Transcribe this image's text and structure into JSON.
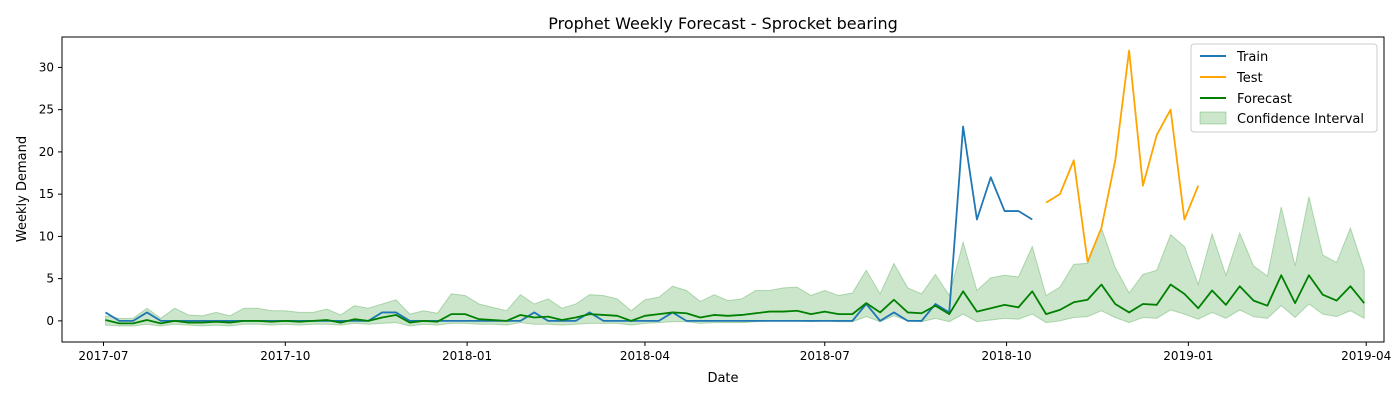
{
  "chart_data": {
    "type": "line",
    "title": "Prophet Weekly Forecast - Sprocket bearing",
    "xlabel": "Date",
    "ylabel": "Weekly Demand",
    "xlim": [
      "2017-06-10",
      "2019-04-10"
    ],
    "ylim": [
      -2.5,
      33.6
    ],
    "x_tick_labels": [
      "2017-07",
      "2017-10",
      "2018-01",
      "2018-04",
      "2018-07",
      "2018-10",
      "2019-01",
      "2019-04"
    ],
    "x_ticks": [
      "2017-07-01",
      "2017-10-01",
      "2018-01-01",
      "2018-04-01",
      "2018-07-01",
      "2018-10-01",
      "2019-01-01",
      "2019-04-01"
    ],
    "y_ticks": [
      0,
      5,
      10,
      15,
      20,
      25,
      30
    ],
    "grid": false,
    "legend_position": "upper right",
    "series": [
      {
        "name": "Train",
        "color": "#1f77b4",
        "x": [
          "2017-07-02",
          "2017-07-09",
          "2017-07-16",
          "2017-07-23",
          "2017-07-30",
          "2017-08-06",
          "2017-08-13",
          "2017-08-20",
          "2017-08-27",
          "2017-09-03",
          "2017-09-10",
          "2017-09-17",
          "2017-09-24",
          "2017-10-01",
          "2017-10-08",
          "2017-10-15",
          "2017-10-22",
          "2017-10-29",
          "2017-11-05",
          "2017-11-12",
          "2017-11-19",
          "2017-11-26",
          "2017-12-03",
          "2017-12-10",
          "2017-12-17",
          "2017-12-24",
          "2017-12-31",
          "2018-01-07",
          "2018-01-14",
          "2018-01-21",
          "2018-01-28",
          "2018-02-04",
          "2018-02-11",
          "2018-02-18",
          "2018-02-25",
          "2018-03-04",
          "2018-03-11",
          "2018-03-18",
          "2018-03-25",
          "2018-04-01",
          "2018-04-08",
          "2018-04-15",
          "2018-04-22",
          "2018-04-29",
          "2018-05-06",
          "2018-05-13",
          "2018-05-20",
          "2018-05-27",
          "2018-06-03",
          "2018-06-10",
          "2018-06-17",
          "2018-06-24",
          "2018-07-01",
          "2018-07-08",
          "2018-07-15",
          "2018-07-22",
          "2018-07-29",
          "2018-08-05",
          "2018-08-12",
          "2018-08-19",
          "2018-08-26",
          "2018-09-02",
          "2018-09-09",
          "2018-09-16",
          "2018-09-23",
          "2018-09-30",
          "2018-10-07",
          "2018-10-14"
        ],
        "values": [
          1,
          0,
          0,
          1,
          0,
          0,
          0,
          0,
          0,
          0,
          0,
          0,
          0,
          0,
          0,
          0,
          0,
          0,
          0,
          0,
          1,
          1,
          0,
          0,
          0,
          0,
          0,
          0,
          0,
          0,
          0,
          1,
          0,
          0,
          0,
          1,
          0,
          0,
          0,
          0,
          0,
          1,
          0,
          0,
          0,
          0,
          0,
          0,
          0,
          0,
          0,
          0,
          0,
          0,
          0,
          2,
          0,
          1,
          0,
          0,
          2,
          1,
          23,
          12,
          17,
          13,
          13,
          12
        ]
      },
      {
        "name": "Test",
        "color": "#ffa500",
        "x": [
          "2018-10-21",
          "2018-10-28",
          "2018-11-04",
          "2018-11-11",
          "2018-11-18",
          "2018-11-25",
          "2018-12-02",
          "2018-12-09",
          "2018-12-16",
          "2018-12-23",
          "2018-12-30",
          "2019-01-06"
        ],
        "values": [
          14,
          15,
          19,
          7,
          11,
          19,
          32,
          16,
          22,
          25,
          12,
          16
        ]
      },
      {
        "name": "Forecast",
        "color": "#008000",
        "x": [
          "2017-07-02",
          "2017-07-09",
          "2017-07-16",
          "2017-07-23",
          "2017-07-30",
          "2017-08-06",
          "2017-08-13",
          "2017-08-20",
          "2017-08-27",
          "2017-09-03",
          "2017-09-10",
          "2017-09-17",
          "2017-09-24",
          "2017-10-01",
          "2017-10-08",
          "2017-10-15",
          "2017-10-22",
          "2017-10-29",
          "2017-11-05",
          "2017-11-12",
          "2017-11-19",
          "2017-11-26",
          "2017-12-03",
          "2017-12-10",
          "2017-12-17",
          "2017-12-24",
          "2017-12-31",
          "2018-01-07",
          "2018-01-14",
          "2018-01-21",
          "2018-01-28",
          "2018-02-04",
          "2018-02-11",
          "2018-02-18",
          "2018-02-25",
          "2018-03-04",
          "2018-03-11",
          "2018-03-18",
          "2018-03-25",
          "2018-04-01",
          "2018-04-08",
          "2018-04-15",
          "2018-04-22",
          "2018-04-29",
          "2018-05-06",
          "2018-05-13",
          "2018-05-20",
          "2018-05-27",
          "2018-06-03",
          "2018-06-10",
          "2018-06-17",
          "2018-06-24",
          "2018-07-01",
          "2018-07-08",
          "2018-07-15",
          "2018-07-22",
          "2018-07-29",
          "2018-08-05",
          "2018-08-12",
          "2018-08-19",
          "2018-08-26",
          "2018-09-02",
          "2018-09-09",
          "2018-09-16",
          "2018-09-23",
          "2018-09-30",
          "2018-10-07",
          "2018-10-14",
          "2018-10-21",
          "2018-10-28",
          "2018-11-04",
          "2018-11-11",
          "2018-11-18",
          "2018-11-25",
          "2018-12-02",
          "2018-12-09",
          "2018-12-16",
          "2018-12-23",
          "2018-12-30",
          "2019-01-06",
          "2019-01-13",
          "2019-01-20",
          "2019-01-27",
          "2019-02-03",
          "2019-02-10",
          "2019-02-17",
          "2019-02-24",
          "2019-03-03",
          "2019-03-10",
          "2019-03-17",
          "2019-03-24",
          "2019-03-31"
        ],
        "values": [
          0.1,
          -0.3,
          -0.3,
          0.1,
          -0.3,
          0.0,
          -0.2,
          -0.2,
          -0.1,
          -0.2,
          0.0,
          0.0,
          -0.1,
          0.0,
          -0.1,
          0.0,
          0.1,
          -0.2,
          0.2,
          0.0,
          0.4,
          0.7,
          -0.2,
          0.0,
          -0.1,
          0.8,
          0.8,
          0.2,
          0.1,
          0.0,
          0.7,
          0.4,
          0.5,
          0.1,
          0.4,
          0.8,
          0.7,
          0.6,
          0.0,
          0.6,
          0.8,
          1.0,
          0.9,
          0.4,
          0.7,
          0.6,
          0.7,
          0.9,
          1.1,
          1.1,
          1.2,
          0.8,
          1.1,
          0.8,
          0.8,
          2.1,
          1.0,
          2.5,
          1.0,
          0.9,
          1.8,
          0.8,
          3.5,
          1.1,
          1.5,
          1.9,
          1.6,
          3.5,
          0.8,
          1.3,
          2.2,
          2.5,
          4.3,
          2.0,
          1.0,
          2.0,
          1.9,
          4.3,
          3.2,
          1.5,
          3.6,
          1.9,
          4.1,
          2.4,
          1.8,
          5.4,
          2.1,
          5.4,
          3.1,
          2.4,
          4.1,
          2.1
        ]
      }
    ],
    "confidence_interval": {
      "name": "Confidence Interval",
      "color": "#008000",
      "opacity": 0.2,
      "upper": [
        0.6,
        0.3,
        0.3,
        1.5,
        0.3,
        1.5,
        0.7,
        0.6,
        1.0,
        0.6,
        1.5,
        1.5,
        1.2,
        1.2,
        1.0,
        1.0,
        1.4,
        0.7,
        1.8,
        1.5,
        2.0,
        2.5,
        0.8,
        1.2,
        0.9,
        3.2,
        3.0,
        2.0,
        1.6,
        1.2,
        3.1,
        2.0,
        2.6,
        1.5,
        2.0,
        3.1,
        3.0,
        2.6,
        1.2,
        2.5,
        2.8,
        4.1,
        3.6,
        2.3,
        3.1,
        2.4,
        2.6,
        3.6,
        3.6,
        3.9,
        4.0,
        3.0,
        3.6,
        3.0,
        3.3,
        6.0,
        3.2,
        6.8,
        3.9,
        3.2,
        5.5,
        3.0,
        9.3,
        3.6,
        5.1,
        5.4,
        5.2,
        8.8,
        3.0,
        4.0,
        6.7,
        6.8,
        11.0,
        6.3,
        3.3,
        5.5,
        6.0,
        10.2,
        8.8,
        4.3,
        10.3,
        5.4,
        10.4,
        6.5,
        5.3,
        13.5,
        6.5,
        14.7,
        7.8,
        6.9,
        11.0,
        6.0
      ],
      "lower": [
        -0.5,
        -0.6,
        -0.6,
        -0.4,
        -0.6,
        -0.4,
        -0.5,
        -0.6,
        -0.5,
        -0.6,
        -0.4,
        -0.4,
        -0.5,
        -0.4,
        -0.5,
        -0.4,
        -0.4,
        -0.5,
        -0.3,
        -0.4,
        -0.3,
        -0.2,
        -0.6,
        -0.4,
        -0.5,
        -0.3,
        -0.3,
        -0.4,
        -0.4,
        -0.5,
        -0.2,
        -0.4,
        -0.4,
        -0.5,
        -0.4,
        -0.3,
        -0.3,
        -0.3,
        -0.5,
        -0.3,
        -0.2,
        -0.1,
        -0.1,
        -0.3,
        -0.2,
        -0.2,
        -0.2,
        -0.1,
        0.0,
        0.0,
        0.0,
        -0.1,
        0.0,
        -0.1,
        -0.1,
        0.5,
        -0.1,
        0.6,
        0.0,
        -0.1,
        0.3,
        -0.1,
        0.8,
        -0.1,
        0.1,
        0.3,
        0.2,
        0.8,
        -0.2,
        0.0,
        0.4,
        0.5,
        1.2,
        0.4,
        -0.2,
        0.4,
        0.3,
        1.3,
        0.8,
        0.2,
        1.0,
        0.3,
        1.3,
        0.5,
        0.3,
        1.8,
        0.4,
        2.0,
        0.8,
        0.5,
        1.2,
        0.3
      ]
    }
  }
}
